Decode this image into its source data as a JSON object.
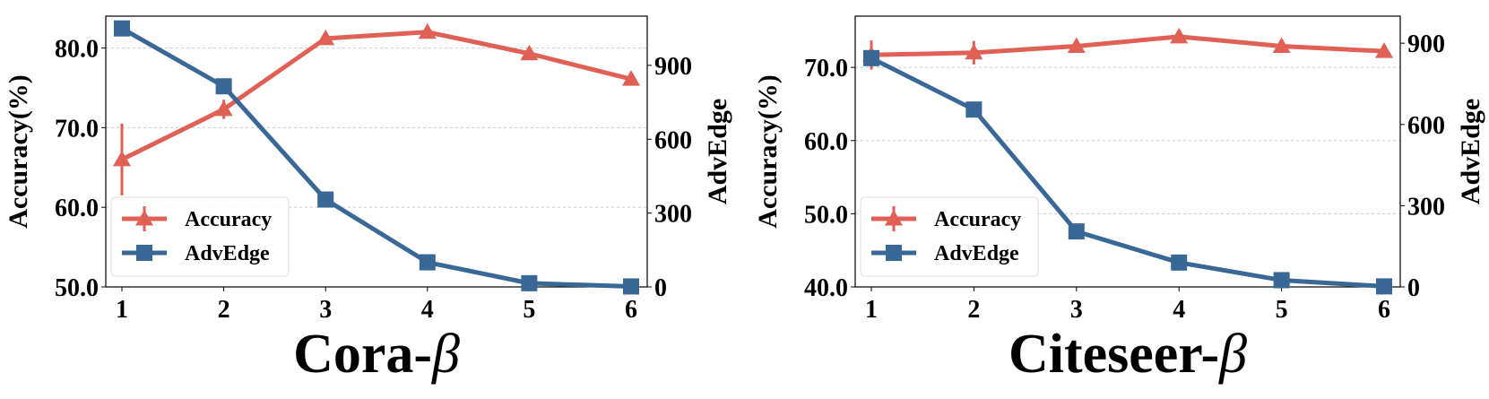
{
  "colors": {
    "accuracy": "#E06055",
    "advedge": "#3A6896",
    "grid": "#cccccc"
  },
  "chart_data": [
    {
      "type": "line",
      "title": "Cora-",
      "title_symbol": "β",
      "x": [
        1,
        2,
        3,
        4,
        5,
        6
      ],
      "ylabel": "Accuracy(%)",
      "ylim": [
        50,
        84
      ],
      "yticks": [
        "50.0",
        "60.0",
        "70.0",
        "80.0"
      ],
      "ytick_values": [
        50,
        60,
        70,
        80
      ],
      "y2label": "AdvEdge",
      "y2lim": [
        0,
        1100
      ],
      "y2ticks": [
        "0",
        "300",
        "600",
        "900"
      ],
      "y2tick_values": [
        0,
        300,
        600,
        900
      ],
      "grid": true,
      "legend": "lower-left",
      "series": [
        {
          "name": "Accuracy",
          "axis": "left",
          "marker": "triangle",
          "values": [
            66.0,
            72.3,
            81.2,
            82.0,
            79.3,
            76.1
          ],
          "errors": [
            4.5,
            1.2,
            0.5,
            0.4,
            0.4,
            0.6
          ]
        },
        {
          "name": "AdvEdge",
          "axis": "right",
          "marker": "square",
          "values": [
            1050,
            815,
            355,
            100,
            15,
            2
          ]
        }
      ]
    },
    {
      "type": "line",
      "title": "Citeseer-",
      "title_symbol": "β",
      "x": [
        1,
        2,
        3,
        4,
        5,
        6
      ],
      "ylabel": "Accuracy(%)",
      "ylim": [
        40,
        77
      ],
      "yticks": [
        "40.0",
        "50.0",
        "60.0",
        "70.0"
      ],
      "ytick_values": [
        40,
        50,
        60,
        70
      ],
      "y2label": "AdvEdge",
      "y2lim": [
        0,
        1000
      ],
      "y2ticks": [
        "0",
        "300",
        "600",
        "900"
      ],
      "y2tick_values": [
        0,
        300,
        600,
        900
      ],
      "grid": true,
      "legend": "lower-left",
      "series": [
        {
          "name": "Accuracy",
          "axis": "left",
          "marker": "triangle",
          "values": [
            71.7,
            72.0,
            72.9,
            74.2,
            72.9,
            72.2
          ],
          "errors": [
            2.0,
            1.6,
            0.5,
            0.5,
            0.5,
            0.5
          ]
        },
        {
          "name": "AdvEdge",
          "axis": "right",
          "marker": "square",
          "values": [
            845,
            655,
            205,
            90,
            25,
            2
          ]
        }
      ]
    }
  ]
}
